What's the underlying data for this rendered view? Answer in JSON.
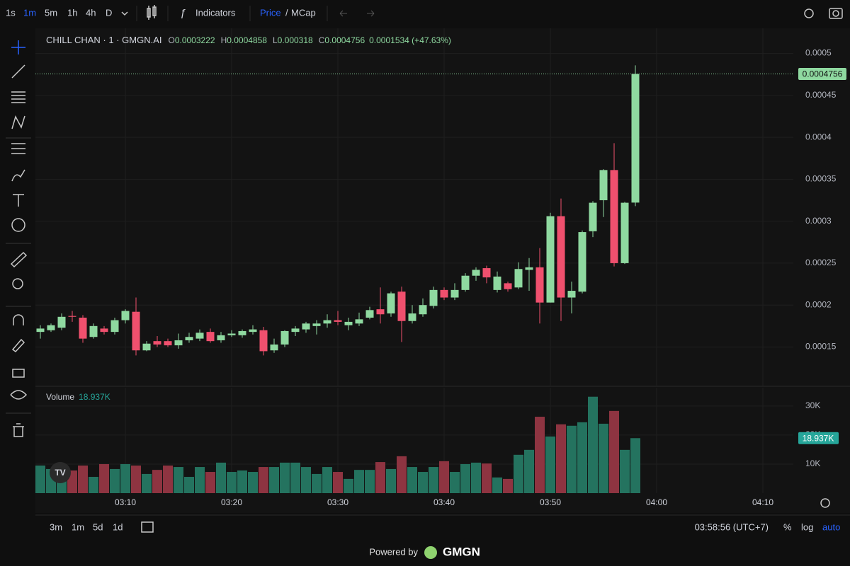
{
  "toolbar": {
    "intervals": [
      "1s",
      "1m",
      "5m",
      "1h",
      "4h",
      "D"
    ],
    "indicators": "Indicators",
    "price": "Price",
    "separator": "/",
    "mcap": "MCap"
  },
  "chart_data": {
    "type": "candlestick",
    "title": "CHILL CHAN · 1 · GMGN.AI",
    "ohlc_labels": [
      "O",
      "H",
      "L",
      "C"
    ],
    "change_label": "0.0001534 (+47.63%)",
    "x": [
      "03:02",
      "03:03",
      "03:04",
      "03:05",
      "03:06",
      "03:07",
      "03:08",
      "03:09",
      "03:10",
      "03:11",
      "03:12",
      "03:13",
      "03:14",
      "03:15",
      "03:16",
      "03:17",
      "03:18",
      "03:19",
      "03:20",
      "03:21",
      "03:22",
      "03:23",
      "03:24",
      "03:25",
      "03:26",
      "03:27",
      "03:28",
      "03:29",
      "03:30",
      "03:31",
      "03:32",
      "03:33",
      "03:34",
      "03:35",
      "03:36",
      "03:37",
      "03:38",
      "03:39",
      "03:40",
      "03:41",
      "03:42",
      "03:43",
      "03:44",
      "03:45",
      "03:46",
      "03:47",
      "03:48",
      "03:49",
      "03:50",
      "03:51",
      "03:52",
      "03:53",
      "03:54",
      "03:55",
      "03:56",
      "03:57",
      "03:58"
    ],
    "open": [
      0.000168,
      0.00017,
      0.000173,
      0.000187,
      0.000185,
      0.000162,
      0.000172,
      0.000168,
      0.000182,
      0.000192,
      0.000146,
      0.000157,
      0.000157,
      0.000152,
      0.000158,
      0.00016,
      0.000168,
      0.000158,
      0.000164,
      0.000164,
      0.000168,
      0.00017,
      0.000146,
      0.000153,
      0.000168,
      0.000171,
      0.000175,
      0.000178,
      0.000182,
      0.000176,
      0.000178,
      0.000185,
      0.000195,
      0.00019,
      0.000216,
      0.000181,
      0.000189,
      0.000199,
      0.000218,
      0.000209,
      0.000218,
      0.000235,
      0.000244,
      0.000218,
      0.000226,
      0.000221,
      0.000242,
      0.000245,
      0.000203,
      0.000306,
      0.000209,
      0.000216,
      0.000288,
      0.000325,
      0.000361,
      0.00025,
      0.0003222
    ],
    "high": [
      0.000176,
      0.000178,
      0.00019,
      0.000193,
      0.000188,
      0.000178,
      0.000175,
      0.000185,
      0.000195,
      0.000209,
      0.000157,
      0.000163,
      0.00016,
      0.000166,
      0.000167,
      0.000171,
      0.000172,
      0.000168,
      0.00017,
      0.000171,
      0.000176,
      0.000174,
      0.00016,
      0.00017,
      0.000175,
      0.00018,
      0.000182,
      0.000189,
      0.000193,
      0.000185,
      0.000191,
      0.000198,
      0.000221,
      0.000216,
      0.000222,
      0.0002,
      0.000208,
      0.000222,
      0.000221,
      0.000226,
      0.000238,
      0.000245,
      0.000247,
      0.00024,
      0.000228,
      0.000251,
      0.000256,
      0.000268,
      0.00031,
      0.000327,
      0.000228,
      0.000289,
      0.000324,
      0.000362,
      0.000393,
      0.000323,
      0.0004858
    ],
    "low": [
      0.00016,
      0.000168,
      0.00017,
      0.00018,
      0.000155,
      0.00016,
      0.000165,
      0.000165,
      0.000178,
      0.00014,
      0.000145,
      0.00015,
      0.00015,
      0.000148,
      0.000155,
      0.000157,
      0.000155,
      0.000155,
      0.000162,
      0.000161,
      0.000165,
      0.00014,
      0.000143,
      0.00015,
      0.000163,
      0.000167,
      0.000165,
      0.000173,
      0.000176,
      0.00017,
      0.000175,
      0.000183,
      0.000178,
      0.000186,
      0.000156,
      0.000178,
      0.000186,
      0.000196,
      0.000206,
      0.000206,
      0.000216,
      0.000229,
      0.000226,
      0.000215,
      0.000216,
      0.000219,
      0.000217,
      0.000178,
      0.000203,
      0.000181,
      0.00019,
      0.000214,
      0.000281,
      0.000305,
      0.000246,
      0.000249,
      0.000318
    ],
    "close": [
      0.000172,
      0.000176,
      0.000186,
      0.000186,
      0.00016,
      0.000175,
      0.000168,
      0.000182,
      0.000193,
      0.000146,
      0.000154,
      0.000153,
      0.000152,
      0.000158,
      0.000162,
      0.000167,
      0.000157,
      0.000164,
      0.000166,
      0.000169,
      0.000171,
      0.000145,
      0.000153,
      0.000169,
      0.000172,
      0.000178,
      0.000178,
      0.000182,
      0.00018,
      0.00018,
      0.000183,
      0.000194,
      0.000189,
      0.000214,
      0.000181,
      0.00019,
      0.0002,
      0.000218,
      0.000209,
      0.000218,
      0.000235,
      0.000242,
      0.000233,
      0.000234,
      0.000219,
      0.000243,
      0.000245,
      0.000203,
      0.000306,
      0.000209,
      0.000217,
      0.000287,
      0.000322,
      0.000361,
      0.00025,
      0.000322,
      0.0004756
    ],
    "colors": {
      "up": "#8fd9a0",
      "down": "#f0506e"
    },
    "ylim": [
      0.000104,
      0.00053
    ],
    "yticks": [
      0.00015,
      0.0002,
      0.00025,
      0.0003,
      0.00035,
      0.0004,
      0.00045,
      0.0005
    ],
    "xticks": [
      "03:10",
      "03:20",
      "03:30",
      "03:40",
      "03:50",
      "04:00",
      "04:10"
    ],
    "grid": true,
    "last_price_line": true,
    "volume": {
      "name": "Volume",
      "value_label": "18.937K",
      "colors": {
        "up": "#24735f",
        "down": "#8e3441"
      },
      "ylim": [
        0,
        36300
      ],
      "yticks": [
        {
          "value": 10000,
          "label": "10K"
        },
        {
          "value": 20000,
          "label": "20K"
        },
        {
          "value": 30000,
          "label": "30K"
        }
      ],
      "values": [
        9500,
        8300,
        9000,
        7800,
        9500,
        5600,
        10000,
        8300,
        10000,
        9500,
        6600,
        8000,
        9500,
        9000,
        5600,
        9000,
        7300,
        10500,
        7300,
        7800,
        7300,
        9000,
        9000,
        10500,
        10500,
        9000,
        6600,
        9000,
        7300,
        4900,
        8000,
        8000,
        10700,
        8300,
        12700,
        9000,
        7300,
        9000,
        11000,
        7300,
        10000,
        10500,
        10200,
        5400,
        4900,
        13200,
        14900,
        26300,
        19500,
        23700,
        23200,
        24400,
        33200,
        23900,
        28300,
        14900,
        18937
      ]
    }
  },
  "footer": {
    "ranges": [
      "3m",
      "1m",
      "5d",
      "1d"
    ],
    "time": "03:58:56 (UTC+7)",
    "scale_options": [
      "%",
      "log",
      "auto"
    ],
    "powered_by": "Powered by",
    "brand": "GMGN"
  }
}
